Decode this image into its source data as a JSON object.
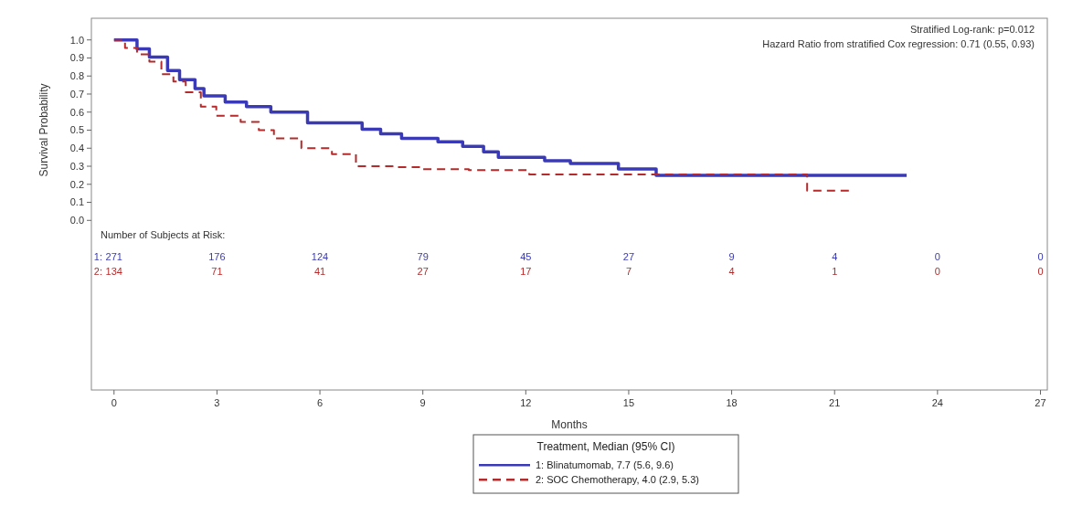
{
  "chart_data": {
    "type": "step",
    "xlabel": "Months",
    "ylabel": "Survival Probability",
    "legend_title": "Treatment, Median (95% CI)",
    "legend": "bottom",
    "grid": false,
    "xlim": [
      -0.66,
      27.2
    ],
    "xticks": [
      0,
      3,
      6,
      9,
      12,
      15,
      18,
      21,
      24,
      27
    ],
    "ylim": [
      -0.94,
      1.12
    ],
    "yticks": [
      {
        "value": 0,
        "label": "0.0"
      },
      0.1,
      0.2,
      0.3,
      0.4,
      0.5,
      0.6,
      0.7,
      0.8,
      0.9,
      {
        "value": 1,
        "label": "1.0"
      }
    ],
    "series": [
      {
        "name": "1: Blinatumomab, 7.7 (5.6, 9.6)",
        "color": "#3a3ab8",
        "line_style": "solid",
        "x": [
          0,
          0.67,
          1.03,
          1.56,
          1.91,
          2.36,
          2.62,
          3.24,
          3.86,
          4.57,
          5.64,
          7.23,
          7.77,
          8.38,
          9.44,
          10.16,
          10.77,
          11.2,
          12.55,
          13.3,
          14.7,
          15.8,
          23.1
        ],
        "values": [
          1.0,
          0.95,
          0.905,
          0.83,
          0.78,
          0.73,
          0.69,
          0.655,
          0.63,
          0.6,
          0.54,
          0.505,
          0.48,
          0.455,
          0.435,
          0.41,
          0.38,
          0.35,
          0.33,
          0.315,
          0.285,
          0.25,
          0.25
        ]
      },
      {
        "name": "2: SOC Chemotherapy, 4.0 (2.9, 5.3)",
        "color": "#b52a2a",
        "line_style": "dashed",
        "x": [
          0,
          0.32,
          0.67,
          1.03,
          1.38,
          1.73,
          2.09,
          2.53,
          2.98,
          3.69,
          4.22,
          4.66,
          5.46,
          6.35,
          7.05,
          8.12,
          9.0,
          10.34,
          12.1,
          20.2,
          21.5
        ],
        "values": [
          1.0,
          0.955,
          0.92,
          0.88,
          0.81,
          0.77,
          0.71,
          0.63,
          0.58,
          0.545,
          0.5,
          0.455,
          0.4,
          0.367,
          0.3,
          0.295,
          0.283,
          0.278,
          0.255,
          0.165,
          0.165
        ]
      }
    ],
    "annotations": [
      "Stratified Log-rank: p=0.012",
      "Hazard Ratio from stratified Cox regression: 0.71 (0.55, 0.93)",
      "Number of Subjects at Risk:",
      "1:",
      "271",
      "176",
      "124",
      "79",
      "45",
      "27",
      "9",
      "4",
      "0",
      "0",
      "2:",
      "134",
      "71",
      "41",
      "27",
      "17",
      "7",
      "4",
      "1",
      "0",
      "0"
    ]
  }
}
